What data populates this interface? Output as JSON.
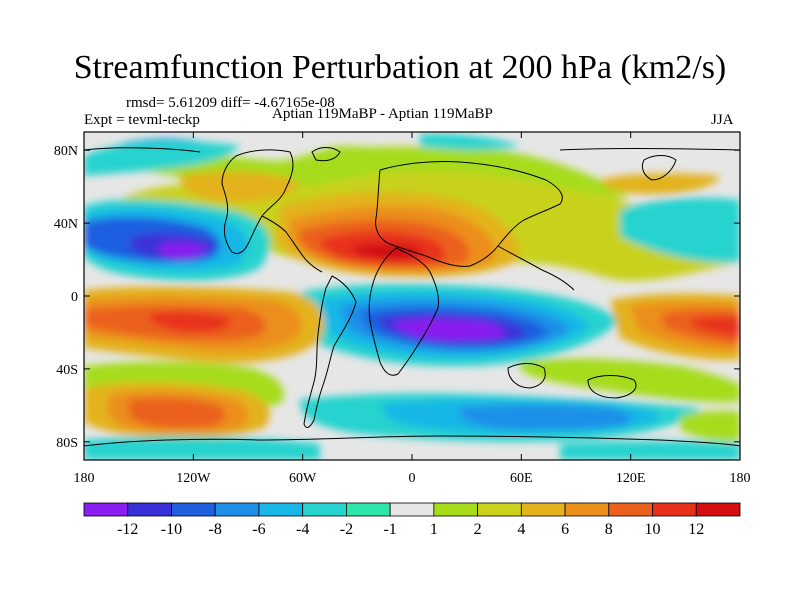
{
  "title": "Streamfunction Perturbation at 200 hPa (km2/s)",
  "stats": "rmsd= 5.61209 diff= -4.67165e-08",
  "experiment": "Expt = tevml-teckp",
  "comparison": "Aptian    119MaBP - Aptian    119MaBP",
  "season": "JJA",
  "map": {
    "projection": "cylindrical equidistant",
    "lon_range": [
      -180,
      180
    ],
    "lat_range": [
      -90,
      90
    ],
    "lon_ticks": [
      {
        "lon": -180,
        "label": "180"
      },
      {
        "lon": -120,
        "label": "120W"
      },
      {
        "lon": -60,
        "label": "60W"
      },
      {
        "lon": 0,
        "label": "0"
      },
      {
        "lon": 60,
        "label": "60E"
      },
      {
        "lon": 120,
        "label": "120E"
      },
      {
        "lon": 180,
        "label": "180"
      }
    ],
    "lat_ticks": [
      {
        "lat": 80,
        "label": "80N"
      },
      {
        "lat": 40,
        "label": "40N"
      },
      {
        "lat": 0,
        "label": "0"
      },
      {
        "lat": -40,
        "label": "40S"
      },
      {
        "lat": -80,
        "label": "80S"
      }
    ],
    "background_color": "#e6e6e6",
    "coastline_color": "#000000"
  },
  "colorbar": {
    "colors": [
      "#8a1df0",
      "#3a30d8",
      "#1f5fe0",
      "#1f8fe8",
      "#19b7e6",
      "#27d3cf",
      "#2ee6a9",
      "#e6e6e6",
      "#a6dc1a",
      "#cbd21a",
      "#e3b21c",
      "#ec8e1c",
      "#eb601a",
      "#e8301a",
      "#d40f12"
    ],
    "labels": [
      "-12",
      "-10",
      "-8",
      "-6",
      "-4",
      "-2",
      "-1",
      "1",
      "2",
      "4",
      "6",
      "8",
      "10",
      "12"
    ]
  }
}
